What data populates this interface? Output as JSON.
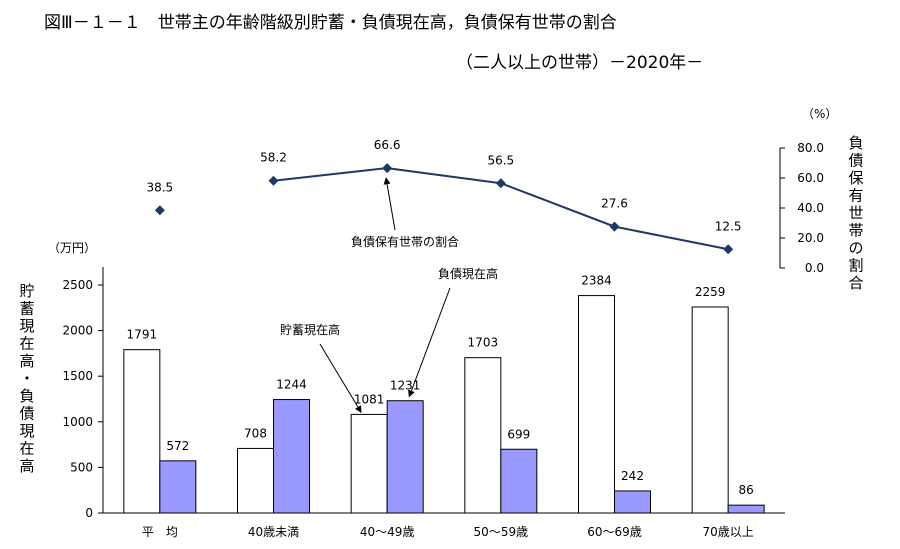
{
  "title": {
    "line1": "図Ⅲ－１－１　世帯主の年齢階級別貯蓄・負債現在高，負債保有世帯の割合",
    "line2": "（二人以上の世帯）－2020年－"
  },
  "colors": {
    "savings_bar": "#ffffff",
    "debt_bar": "#9999ff",
    "line": "#1f3864"
  },
  "chart_data": {
    "type": "bar",
    "categories": [
      "平　均",
      "40歳未満",
      "40～49歳",
      "50～59歳",
      "60～69歳",
      "70歳以上"
    ],
    "series": [
      {
        "name": "貯蓄現在高",
        "values": [
          1791,
          708,
          1081,
          1703,
          2384,
          2259
        ]
      },
      {
        "name": "負債現在高",
        "values": [
          572,
          1244,
          1231,
          699,
          242,
          86
        ]
      }
    ],
    "line_series": {
      "name": "負債保有世帯の割合",
      "values": [
        38.5,
        58.2,
        66.6,
        56.5,
        27.6,
        12.5
      ],
      "connected_from": 1
    },
    "y_left": {
      "unit": "（万円）",
      "label": "貯蓄現在高・負債現在高",
      "ticks": [
        0,
        500,
        1000,
        1500,
        2000,
        2500
      ],
      "ylim": [
        0,
        2500
      ]
    },
    "y_right": {
      "unit": "（%）",
      "label": "負債保有世帯の割合",
      "ticks": [
        "0.0",
        "20.0",
        "40.0",
        "60.0",
        "80.0"
      ],
      "ylim": [
        0,
        80
      ]
    },
    "annotations": {
      "savings": "貯蓄現在高",
      "debt": "負債現在高",
      "ratio": "負債保有世帯の割合"
    }
  }
}
